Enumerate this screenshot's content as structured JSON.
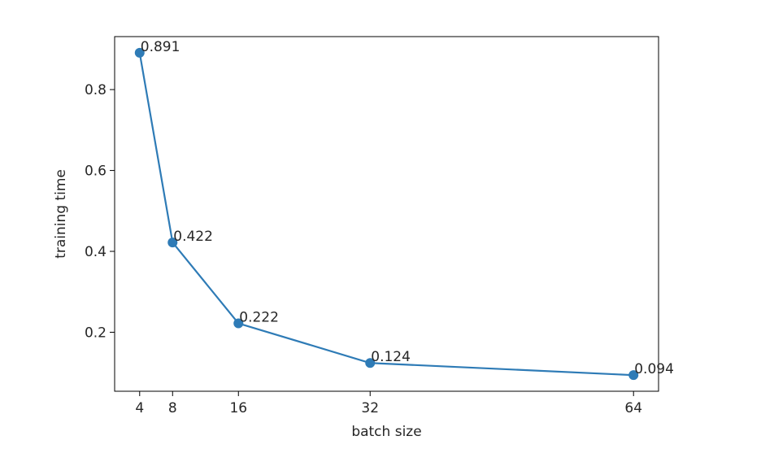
{
  "chart_data": {
    "type": "line",
    "title": "",
    "xlabel": "batch size",
    "ylabel": "training time",
    "x": [
      4,
      8,
      16,
      32,
      64
    ],
    "series": [
      {
        "values": [
          0.891,
          0.422,
          0.222,
          0.124,
          0.094
        ],
        "labels": [
          "0.891",
          "0.422",
          "0.222",
          "0.124",
          "0.094"
        ],
        "color": "#2e7bb6"
      }
    ],
    "xticks": [
      4,
      8,
      16,
      32,
      64
    ],
    "xtick_labels": [
      "4",
      "8",
      "16",
      "32",
      "64"
    ],
    "yticks": [
      0.2,
      0.4,
      0.6,
      0.8
    ],
    "ytick_labels": [
      "0.2",
      "0.4",
      "0.6",
      "0.8"
    ],
    "xlim": [
      0.96,
      67.04
    ],
    "ylim": [
      0.0541,
      0.931
    ],
    "grid": false,
    "markers": true,
    "legend": "none"
  }
}
